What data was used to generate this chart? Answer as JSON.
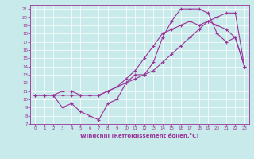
{
  "xlabel": "Windchill (Refroidissement éolien,°C)",
  "bg_color": "#c8eaea",
  "line_color": "#993399",
  "xlim": [
    -0.5,
    23.5
  ],
  "ylim": [
    7,
    21.5
  ],
  "xticks": [
    0,
    1,
    2,
    3,
    4,
    5,
    6,
    7,
    8,
    9,
    10,
    11,
    12,
    13,
    14,
    15,
    16,
    17,
    18,
    19,
    20,
    21,
    22,
    23
  ],
  "yticks": [
    7,
    8,
    9,
    10,
    11,
    12,
    13,
    14,
    15,
    16,
    17,
    18,
    19,
    20,
    21
  ],
  "line1_x": [
    0,
    1,
    2,
    3,
    4,
    5,
    6,
    7,
    8,
    9,
    10,
    11,
    12,
    13,
    14,
    15,
    16,
    17,
    18,
    19,
    20,
    21,
    22,
    23
  ],
  "line1_y": [
    10.5,
    10.5,
    10.5,
    11.0,
    11.0,
    10.5,
    10.5,
    10.5,
    11.0,
    11.5,
    12.0,
    12.5,
    13.0,
    13.5,
    14.5,
    15.5,
    16.5,
    17.5,
    18.5,
    19.5,
    20.0,
    20.5,
    20.5,
    14.0
  ],
  "line2_x": [
    0,
    1,
    2,
    3,
    4,
    5,
    6,
    7,
    8,
    9,
    10,
    11,
    12,
    13,
    14,
    15,
    16,
    17,
    18,
    19,
    20,
    21,
    22,
    23
  ],
  "line2_y": [
    10.5,
    10.5,
    10.5,
    9.0,
    9.5,
    8.5,
    8.0,
    7.5,
    9.5,
    10.0,
    12.0,
    13.0,
    13.0,
    14.5,
    17.5,
    19.5,
    21.0,
    21.0,
    21.0,
    20.5,
    18.0,
    17.0,
    17.5,
    14.0
  ],
  "line3_x": [
    0,
    1,
    2,
    3,
    4,
    5,
    6,
    7,
    8,
    9,
    10,
    11,
    12,
    13,
    14,
    15,
    16,
    17,
    18,
    19,
    20,
    21,
    22,
    23
  ],
  "line3_y": [
    10.5,
    10.5,
    10.5,
    10.5,
    10.5,
    10.5,
    10.5,
    10.5,
    11.0,
    11.5,
    12.5,
    13.5,
    15.0,
    16.5,
    18.0,
    18.5,
    19.0,
    19.5,
    19.0,
    19.5,
    19.0,
    18.5,
    17.5,
    14.0
  ],
  "marker": "+"
}
